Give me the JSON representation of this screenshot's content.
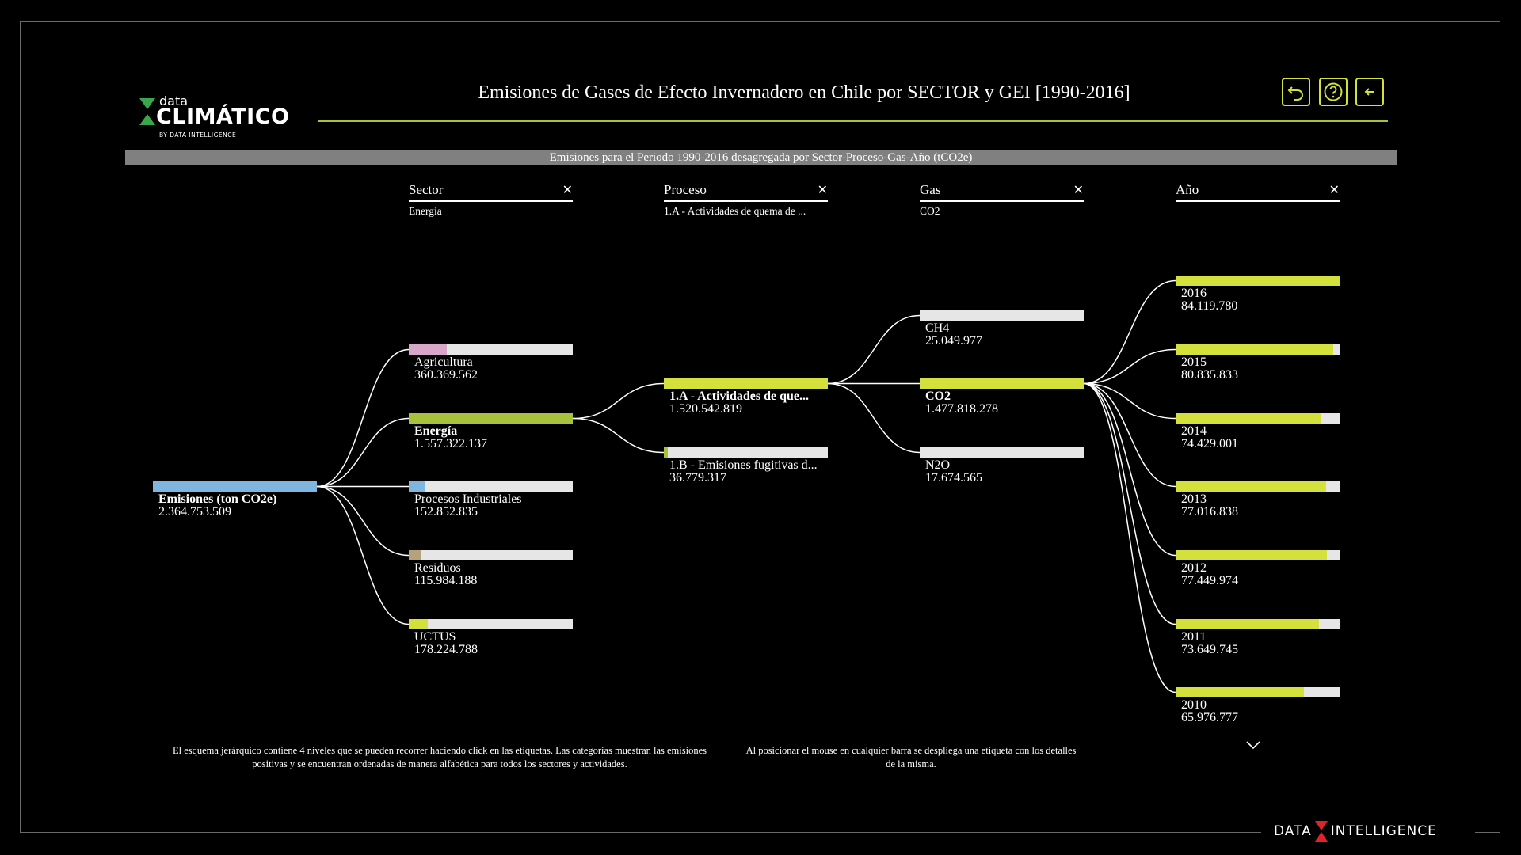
{
  "header": {
    "title": "Emisiones de Gases de Efecto Invernadero en Chile por SECTOR y GEI [1990-2016]",
    "subtitle": "Emisiones para el Periodo 1990-2016 desagregada por Sector-Proceso-Gas-Año (tCO2e)",
    "nav_icons": [
      "undo-icon",
      "help-icon",
      "back-arrow-icon"
    ]
  },
  "logo": {
    "small": "data",
    "big": "CLIMÁTICO",
    "by": "BY DATA INTELLIGENCE"
  },
  "brand_footer": {
    "left": "DATA",
    "right": "INTELLIGENCE"
  },
  "colors": {
    "accent": "#d4e03c",
    "line": "#a6c33b",
    "root": "#7fb6e0",
    "agricultura": "#d8a6c8",
    "energia": "#a6c33b",
    "procesos": "#7fb6e0",
    "residuos": "#b5a27c",
    "uctus": "#d4e03c",
    "yellow": "#d4e03c",
    "empty": "#e6e6e6"
  },
  "columns": [
    {
      "label": "Sector",
      "filter": "Energía"
    },
    {
      "label": "Proceso",
      "filter": "1.A - Actividades de quema de ..."
    },
    {
      "label": "Gas",
      "filter": "CO2"
    },
    {
      "label": "Año",
      "filter": ""
    }
  ],
  "tree": {
    "root": {
      "name": "Emisiones (ton CO2e)",
      "value": "2.364.753.509",
      "share": 1.0
    },
    "sector": [
      {
        "name": "Agricultura",
        "value": "360.369.562",
        "share": 0.23,
        "color": "#d8a6c8"
      },
      {
        "name": "Energía",
        "value": "1.557.322.137",
        "share": 1.0,
        "color": "#a6c33b",
        "active": true
      },
      {
        "name": "Procesos Industriales",
        "value": "152.852.835",
        "share": 0.1,
        "color": "#7fb6e0"
      },
      {
        "name": "Residuos",
        "value": "115.984.188",
        "share": 0.075,
        "color": "#b5a27c"
      },
      {
        "name": "UCTUS",
        "value": "178.224.788",
        "share": 0.115,
        "color": "#d4e03c"
      }
    ],
    "proceso": [
      {
        "name": "1.A - Actividades de que...",
        "value": "1.520.542.819",
        "share": 1.0,
        "color": "#d4e03c",
        "active": true
      },
      {
        "name": "1.B - Emisiones fugitivas d...",
        "value": "36.779.317",
        "share": 0.025,
        "color": "#a6c33b"
      }
    ],
    "gas": [
      {
        "name": "CH4",
        "value": "25.049.977",
        "share": 0.017,
        "color": "#e6e6e6"
      },
      {
        "name": "CO2",
        "value": "1.477.818.278",
        "share": 1.0,
        "color": "#d4e03c",
        "active": true
      },
      {
        "name": "N2O",
        "value": "17.674.565",
        "share": 0.012,
        "color": "#e6e6e6"
      }
    ],
    "anio": [
      {
        "name": "2016",
        "value": "84.119.780",
        "share": 1.0,
        "color": "#d4e03c"
      },
      {
        "name": "2015",
        "value": "80.835.833",
        "share": 0.961,
        "color": "#d4e03c"
      },
      {
        "name": "2014",
        "value": "74.429.001",
        "share": 0.885,
        "color": "#d4e03c"
      },
      {
        "name": "2013",
        "value": "77.016.838",
        "share": 0.916,
        "color": "#d4e03c"
      },
      {
        "name": "2012",
        "value": "77.449.974",
        "share": 0.921,
        "color": "#d4e03c"
      },
      {
        "name": "2011",
        "value": "73.649.745",
        "share": 0.876,
        "color": "#d4e03c"
      },
      {
        "name": "2010",
        "value": "65.976.777",
        "share": 0.784,
        "color": "#d4e03c"
      }
    ]
  },
  "footer": {
    "note_left": "El esquema jerárquico contiene 4 niveles que se pueden recorrer haciendo click en las etiquetas. Las categorías muestran las emisiones positivas y se encuentran ordenadas de manera alfabética para todos los sectores y actividades.",
    "note_right": "Al posicionar el mouse en cualquier barra se despliega una etiqueta con los detalles de la misma."
  }
}
